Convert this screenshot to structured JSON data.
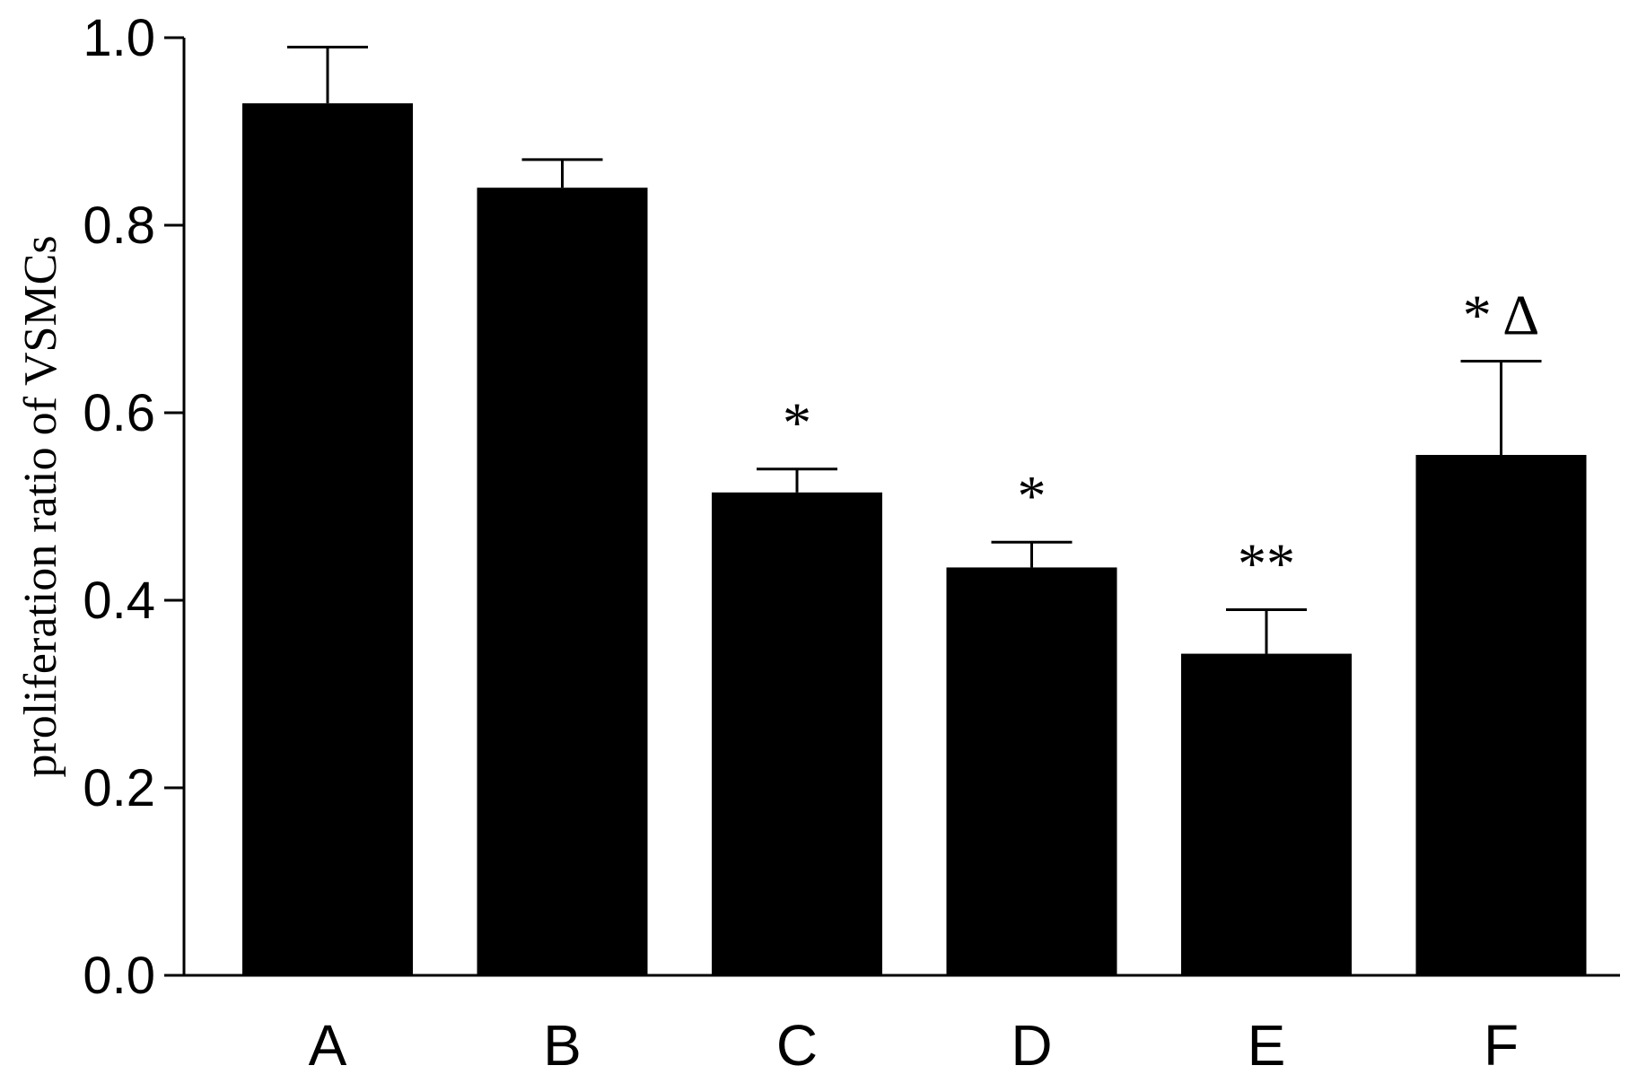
{
  "chart_data": {
    "type": "bar",
    "title": "",
    "xlabel": "",
    "ylabel": "proliferation ratio of VSMCs",
    "categories": [
      "A",
      "B",
      "C",
      "D",
      "E",
      "F"
    ],
    "values": [
      0.93,
      0.84,
      0.515,
      0.435,
      0.343,
      0.555
    ],
    "error_upper": [
      0.99,
      0.87,
      0.54,
      0.462,
      0.39,
      0.655
    ],
    "annotations": [
      "",
      "",
      "*",
      "*",
      "**",
      "* Δ"
    ],
    "yticks": [
      "0.0",
      "0.2",
      "0.4",
      "0.6",
      "0.8",
      "1.0"
    ],
    "ylim": [
      0,
      1.0
    ],
    "grid": false,
    "legend": "none",
    "bar_color": "#000000"
  }
}
